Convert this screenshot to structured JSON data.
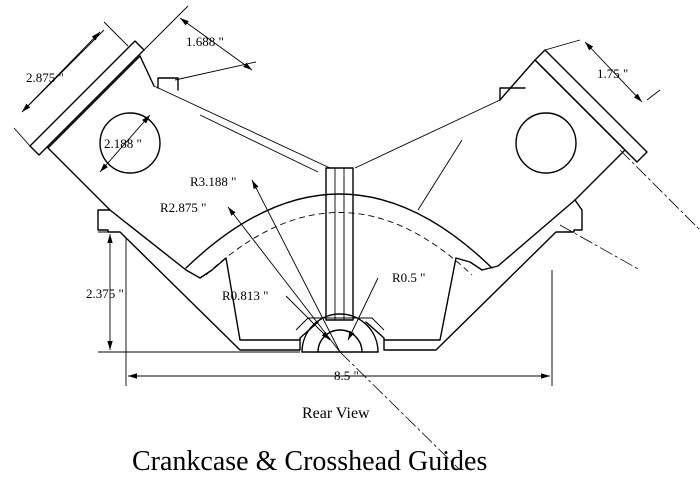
{
  "title": "Crankcase & Crosshead Guides",
  "view_label": "Rear View",
  "dimensions": {
    "left_guide_length": "2.875 \"",
    "left_guide_width": "1.688 \"",
    "bore_diameter": "2.188 \"",
    "right_guide_width": "1.75 \"",
    "radius_outer_arc": "R3.188 \"",
    "radius_inner_arc": "R2.875 \"",
    "radius_bearing": "R0.813 \"",
    "radius_crank": "R0.5 \"",
    "height": "2.375 \"",
    "overall_width": "8.5 \""
  }
}
